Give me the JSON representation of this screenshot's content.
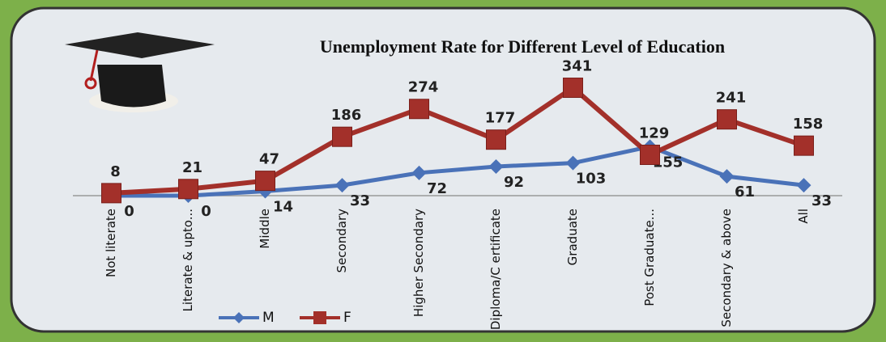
{
  "chart_data": {
    "type": "line",
    "title": "Unemployment Rate for Different Level of Education",
    "categories": [
      "Not literate",
      "Literate & upto...",
      "Middle",
      "Secondary",
      "Higher Secondary",
      "Diploma/C ertificate",
      "Graduate",
      "Post Graduate...",
      "Secondary & above",
      "All"
    ],
    "series": [
      {
        "name": "M",
        "color": "#4a72b8",
        "values": [
          0,
          0,
          14,
          33,
          72,
          92,
          103,
          155,
          61,
          33
        ]
      },
      {
        "name": "F",
        "color": "#a3302a",
        "values": [
          8,
          21,
          47,
          186,
          274,
          177,
          341,
          129,
          241,
          158
        ]
      }
    ],
    "ylim": [
      0,
      350
    ],
    "legend": "bottom"
  }
}
